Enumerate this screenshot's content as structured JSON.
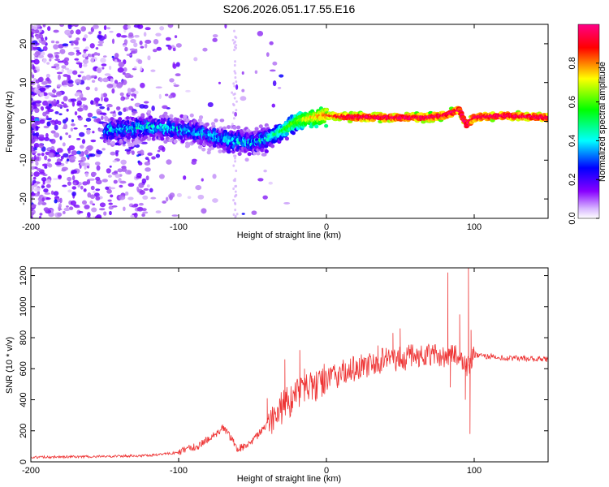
{
  "title": "S206.2026.051.17.55.E16",
  "chart_data": [
    {
      "type": "heatmap",
      "xlabel": "Height of straight line (km)",
      "ylabel": "Frequency (Hz)",
      "xlim": [
        -200,
        150
      ],
      "ylim": [
        -25,
        25
      ],
      "xticks": [
        -200,
        -100,
        0,
        100
      ],
      "xtick_labels": [
        "-200",
        "-100",
        "0",
        "100"
      ],
      "yticks": [
        -20,
        -10,
        0,
        10,
        20
      ],
      "ytick_labels": [
        "-20",
        "-10",
        "0",
        "10",
        "20"
      ],
      "ridge": {
        "x": [
          -200,
          -150,
          -120,
          -100,
          -80,
          -65,
          -50,
          -40,
          -30,
          -20,
          -10,
          0,
          10,
          40,
          70,
          80,
          90,
          95,
          100,
          120,
          150
        ],
        "y": [
          -2,
          -2.5,
          -1.5,
          -2,
          -3.5,
          -5,
          -5.5,
          -4.5,
          -2.5,
          0,
          1,
          1.5,
          1.2,
          1,
          1,
          1.5,
          3,
          -1,
          1,
          1.5,
          1
        ]
      },
      "colorbar": {
        "label": "Normalized spectral amplitude",
        "range": [
          0,
          1
        ],
        "ticks": [
          0,
          0.2,
          0.4,
          0.6,
          0.8
        ],
        "tick_labels": [
          "0.0",
          "0.2",
          "0.4",
          "0.6",
          "0.8"
        ],
        "colors": [
          "#ffffff",
          "#8800ff",
          "#0000ff",
          "#00ffff",
          "#00ff00",
          "#ffff00",
          "#ff0000",
          "#ff0088"
        ]
      }
    },
    {
      "type": "line",
      "xlabel": "Height of straight line (km)",
      "ylabel": "SNR (10 * v/v)",
      "xlim": [
        -200,
        150
      ],
      "ylim": [
        0,
        1250
      ],
      "xticks": [
        -200,
        -100,
        0,
        100
      ],
      "xtick_labels": [
        "-200",
        "-100",
        "0",
        "100"
      ],
      "yticks": [
        0,
        200,
        400,
        600,
        800,
        1000,
        1200
      ],
      "ytick_labels": [
        "0",
        "200",
        "400",
        "600",
        "800",
        "1000",
        "1200"
      ],
      "color": "#ee3333",
      "trend": {
        "x": [
          -200,
          -150,
          -120,
          -100,
          -85,
          -75,
          -70,
          -65,
          -60,
          -50,
          -40,
          -30,
          -20,
          -10,
          0,
          10,
          20,
          30,
          40,
          50,
          60,
          70,
          80,
          90,
          95,
          100,
          110,
          120,
          150
        ],
        "y": [
          30,
          35,
          40,
          60,
          110,
          180,
          220,
          160,
          80,
          130,
          250,
          350,
          430,
          480,
          530,
          570,
          600,
          640,
          660,
          670,
          680,
          690,
          680,
          690,
          600,
          690,
          680,
          670,
          660
        ]
      },
      "spikes": [
        {
          "x": -70,
          "y": 240
        },
        {
          "x": -40,
          "y": 410
        },
        {
          "x": -28,
          "y": 660
        },
        {
          "x": -18,
          "y": 720
        },
        {
          "x": -15,
          "y": 600
        },
        {
          "x": 35,
          "y": 750
        },
        {
          "x": 45,
          "y": 830
        },
        {
          "x": 50,
          "y": 860
        },
        {
          "x": 82,
          "y": 1220
        },
        {
          "x": 84,
          "y": 480
        },
        {
          "x": 90,
          "y": 950
        },
        {
          "x": 94,
          "y": 400
        },
        {
          "x": 96,
          "y": 1250
        },
        {
          "x": 97,
          "y": 180
        },
        {
          "x": 98,
          "y": 850
        }
      ]
    }
  ]
}
